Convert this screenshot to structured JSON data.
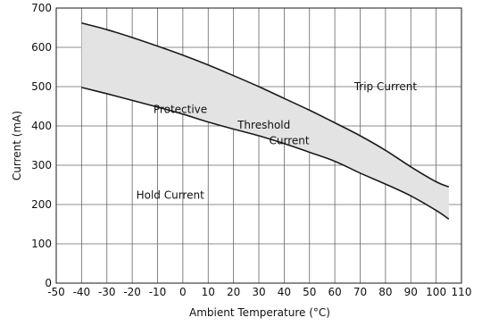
{
  "chart_data": {
    "type": "area",
    "xlabel": "Ambient Temperature (°C)",
    "ylabel": "Current (mA)",
    "xlim": [
      -50,
      110
    ],
    "ylim": [
      0,
      700
    ],
    "x_ticks": [
      -50,
      -40,
      -30,
      -20,
      -10,
      0,
      10,
      20,
      30,
      40,
      50,
      60,
      70,
      80,
      90,
      100,
      110
    ],
    "y_ticks": [
      0,
      100,
      200,
      300,
      400,
      500,
      600,
      700
    ],
    "grid": true,
    "series": [
      {
        "x": [
          -40,
          -30,
          -20,
          -10,
          0,
          10,
          20,
          30,
          40,
          50,
          60,
          70,
          80,
          90,
          100,
          105
        ],
        "values": [
          662,
          645,
          625,
          603,
          580,
          555,
          528,
          500,
          470,
          440,
          408,
          375,
          338,
          296,
          258,
          245
        ]
      },
      {
        "x": [
          -40,
          -30,
          -20,
          -10,
          0,
          10,
          20,
          30,
          40,
          50,
          60,
          70,
          80,
          90,
          100,
          105
        ],
        "values": [
          498,
          482,
          465,
          448,
          430,
          410,
          392,
          375,
          355,
          333,
          310,
          280,
          252,
          222,
          185,
          163
        ]
      }
    ],
    "band_color": "#e3e3e3",
    "line_color": "#1a1a1a",
    "annotations": [
      {
        "text": "Trip Current",
        "x": 80,
        "y": 500
      },
      {
        "text": "Protective",
        "x": -1,
        "y": 442
      },
      {
        "text": "Threshold",
        "x": 32,
        "y": 402
      },
      {
        "text": "Current",
        "x": 42,
        "y": 362
      },
      {
        "text": "Hold Current",
        "x": -5,
        "y": 224
      }
    ]
  }
}
